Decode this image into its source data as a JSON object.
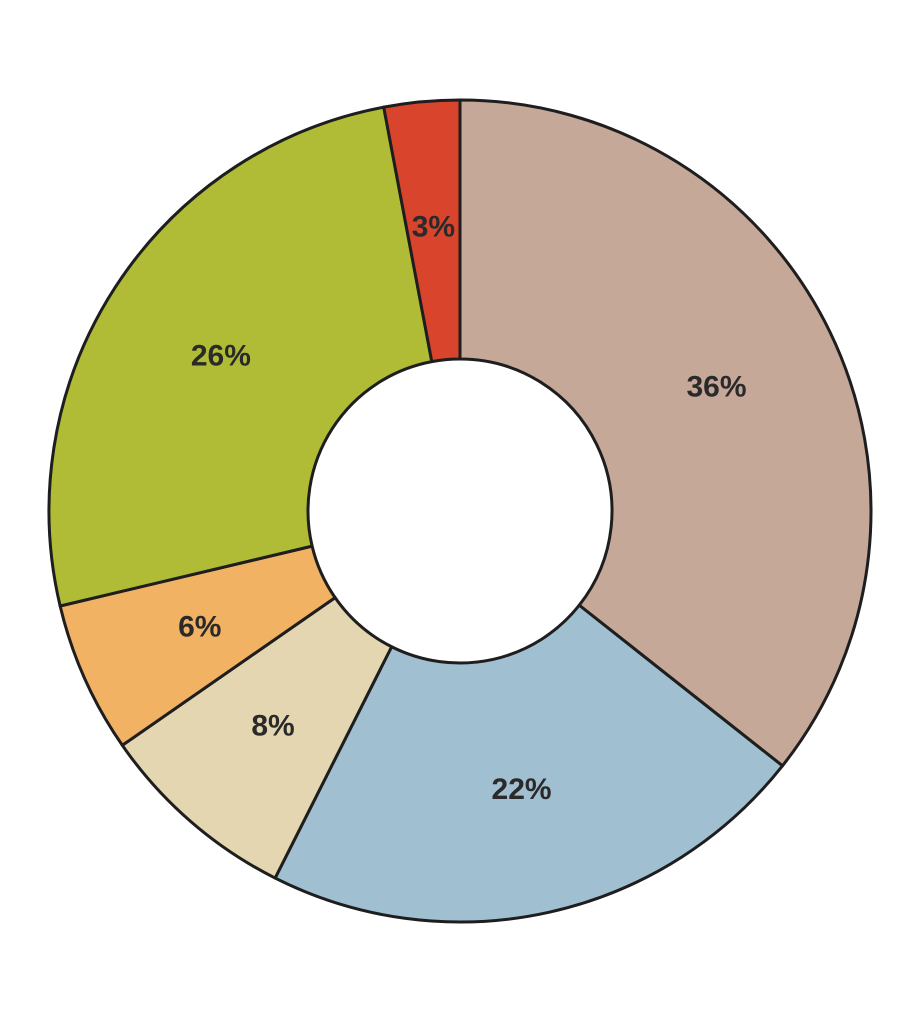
{
  "chart_data": {
    "type": "pie",
    "variant": "donut",
    "title": "",
    "slices": [
      {
        "value": 36,
        "label": "36%",
        "color": "#c6a899"
      },
      {
        "value": 22,
        "label": "22%",
        "color": "#a0c0d1"
      },
      {
        "value": 8,
        "label": "8%",
        "color": "#e4d6b1"
      },
      {
        "value": 6,
        "label": "6%",
        "color": "#f2b263"
      },
      {
        "value": 26,
        "label": "26%",
        "color": "#b0bc35"
      },
      {
        "value": 3,
        "label": "3%",
        "color": "#d9442c"
      }
    ],
    "start": "top",
    "direction": "clockwise",
    "stroke_color": "#1e1e1e",
    "legend": "none"
  }
}
